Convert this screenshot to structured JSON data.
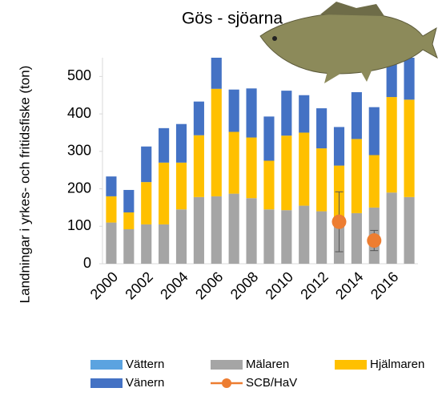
{
  "chart_data": {
    "type": "bar",
    "stacked": true,
    "title": "Gös - sjöarna",
    "y_label": "Landningar i yrkes- och fritidsfiske (ton)",
    "categories": [
      "2000",
      null,
      "2002",
      null,
      "2004",
      null,
      "2006",
      null,
      "2008",
      null,
      "2010",
      null,
      "2012",
      null,
      "2014",
      null,
      "2016",
      null
    ],
    "series": [
      {
        "name": "Vättern",
        "color": "#5ba3e0",
        "values": [
          0,
          0,
          0,
          0,
          0,
          0,
          0,
          0,
          0,
          0,
          0,
          0,
          0,
          0,
          0,
          0,
          0,
          0
        ]
      },
      {
        "name": "Mälaren",
        "color": "#a5a5a5",
        "values": [
          110,
          92,
          105,
          105,
          145,
          178,
          180,
          187,
          175,
          145,
          143,
          155,
          140,
          125,
          135,
          150,
          190,
          178
        ]
      },
      {
        "name": "Hjälmaren",
        "color": "#ffc000",
        "values": [
          70,
          45,
          113,
          165,
          125,
          165,
          287,
          165,
          162,
          130,
          199,
          195,
          168,
          137,
          198,
          140,
          255,
          260
        ]
      },
      {
        "name": "Vänern",
        "color": "#4472c4",
        "values": [
          53,
          60,
          95,
          92,
          103,
          90,
          83,
          113,
          131,
          118,
          120,
          100,
          107,
          103,
          125,
          128,
          105,
          112
        ]
      },
      {
        "name": "SCB/HaV",
        "type": "scatter",
        "color": "#ed7d31",
        "values": [
          null,
          null,
          null,
          null,
          null,
          null,
          null,
          null,
          null,
          null,
          null,
          null,
          null,
          112,
          null,
          62,
          null,
          null
        ],
        "errors": [
          null,
          null,
          null,
          null,
          null,
          null,
          null,
          null,
          null,
          null,
          null,
          null,
          null,
          80,
          null,
          27,
          null,
          null
        ]
      }
    ],
    "ylim": [
      0,
      550
    ],
    "yticks": [
      0,
      100,
      200,
      300,
      400,
      500
    ]
  }
}
